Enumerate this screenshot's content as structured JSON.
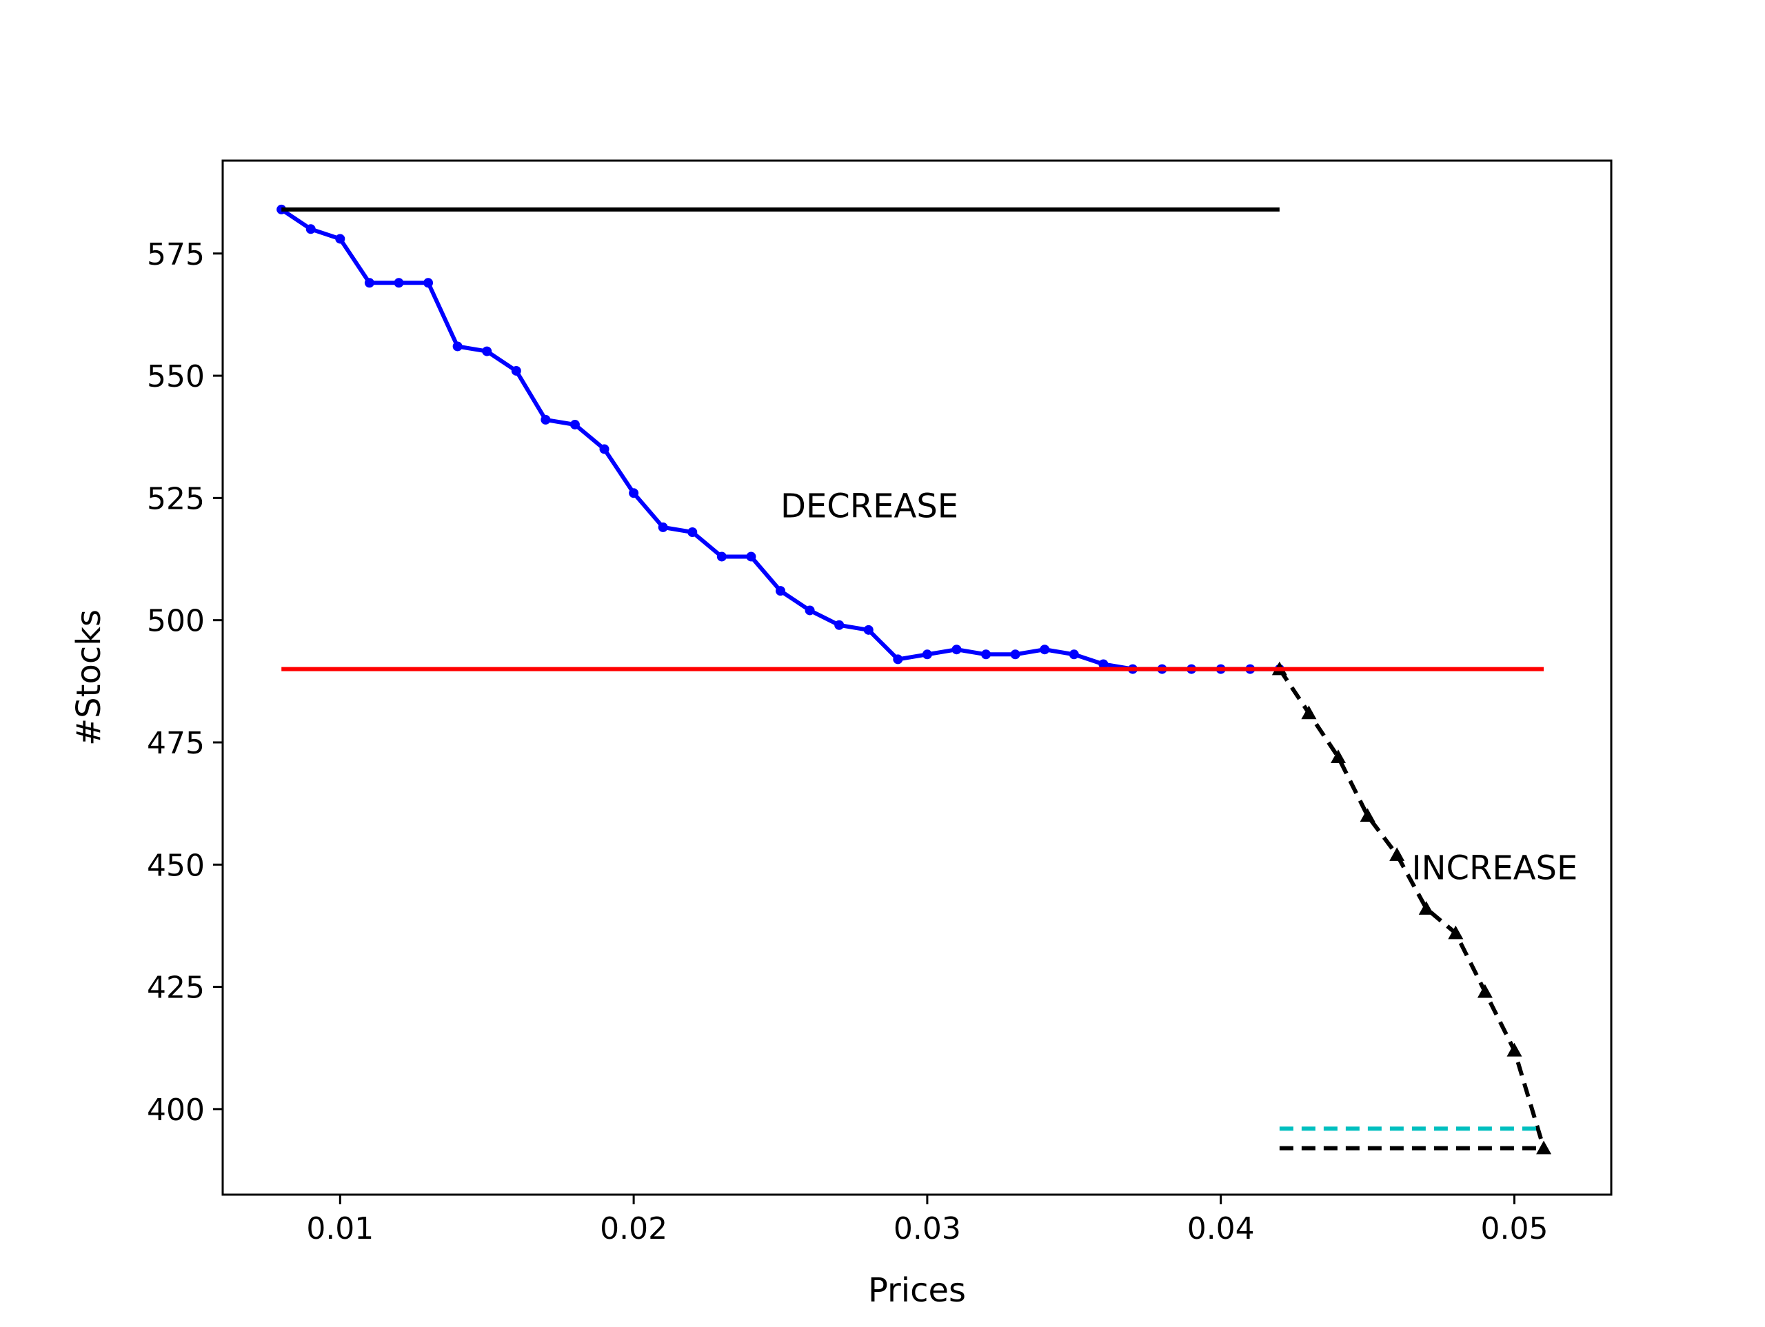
{
  "chart_data": {
    "type": "line",
    "title": "",
    "xlabel": "Prices",
    "ylabel": "#Stocks",
    "xlim": [
      0.006,
      0.0533
    ],
    "ylim": [
      382.5,
      594
    ],
    "x_ticks": [
      0.01,
      0.02,
      0.03,
      0.04,
      0.05
    ],
    "x_tick_labels": [
      "0.01",
      "0.02",
      "0.03",
      "0.04",
      "0.05"
    ],
    "y_ticks": [
      400,
      425,
      450,
      475,
      500,
      525,
      550,
      575
    ],
    "y_tick_labels": [
      "400",
      "425",
      "450",
      "475",
      "500",
      "525",
      "550",
      "575"
    ],
    "grid": false,
    "legend": "none",
    "series": [
      {
        "color": "#0000ff",
        "style": "solid",
        "marker": "circle",
        "x": [
          0.008,
          0.009,
          0.01,
          0.011,
          0.012,
          0.013,
          0.014,
          0.015,
          0.016,
          0.017,
          0.018,
          0.019,
          0.02,
          0.021,
          0.022,
          0.023,
          0.024,
          0.025,
          0.026,
          0.027,
          0.028,
          0.029,
          0.03,
          0.031,
          0.032,
          0.033,
          0.034,
          0.035,
          0.036,
          0.037,
          0.038,
          0.039,
          0.04,
          0.041,
          0.042
        ],
        "y": [
          584,
          580,
          578,
          569,
          569,
          569,
          556,
          555,
          551,
          541,
          540,
          535,
          526,
          519,
          518,
          513,
          513,
          506,
          502,
          499,
          498,
          492,
          493,
          494,
          493,
          493,
          494,
          493,
          491,
          490,
          490,
          490,
          490,
          490,
          490
        ]
      },
      {
        "color": "#000000",
        "style": "dashed",
        "marker": "triangle",
        "x": [
          0.042,
          0.043,
          0.044,
          0.045,
          0.046,
          0.047,
          0.048,
          0.049,
          0.05,
          0.051
        ],
        "y": [
          490,
          481,
          472,
          460,
          452,
          441,
          436,
          424,
          412,
          392
        ]
      },
      {
        "color": "#000000",
        "style": "solid",
        "marker": "none",
        "x": [
          0.008,
          0.042
        ],
        "y": [
          584,
          584
        ]
      },
      {
        "color": "#ff0000",
        "style": "solid",
        "marker": "none",
        "x": [
          0.008,
          0.051
        ],
        "y": [
          490,
          490
        ]
      },
      {
        "color": "#00bfbf",
        "style": "dashed",
        "marker": "none",
        "x": [
          0.042,
          0.051
        ],
        "y": [
          396,
          396
        ]
      },
      {
        "color": "#000000",
        "style": "dashed",
        "marker": "none",
        "x": [
          0.042,
          0.051
        ],
        "y": [
          392,
          392
        ]
      }
    ],
    "annotations": [
      {
        "text": "DECREASE",
        "x": 0.025,
        "y": 521
      },
      {
        "text": "INCREASE",
        "x": 0.0465,
        "y": 447
      }
    ]
  }
}
